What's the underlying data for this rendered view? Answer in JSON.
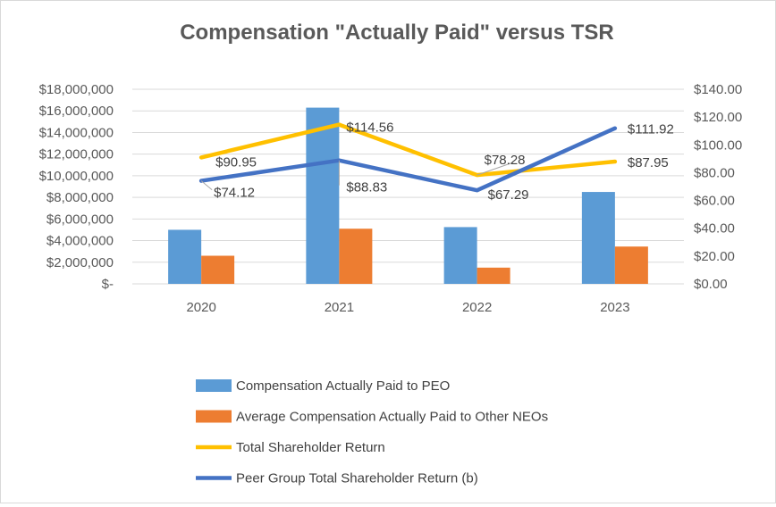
{
  "chart_data": {
    "type": "bar",
    "title": "Compensation \"Actually Paid\" versus TSR",
    "categories": [
      "2020",
      "2021",
      "2022",
      "2023"
    ],
    "y_left": {
      "min": 0,
      "max": 18000000,
      "step": 2000000,
      "tick_labels": [
        "$-",
        "$2,000,000",
        "$4,000,000",
        "$6,000,000",
        "$8,000,000",
        "$10,000,000",
        "$12,000,000",
        "$14,000,000",
        "$16,000,000",
        "$18,000,000"
      ]
    },
    "y_right": {
      "min": 0,
      "max": 140,
      "step": 20,
      "tick_labels": [
        "$0.00",
        "$20.00",
        "$40.00",
        "$60.00",
        "$80.00",
        "$100.00",
        "$120.00",
        "$140.00"
      ]
    },
    "bar_series": [
      {
        "name": "Compensation Actually Paid to PEO",
        "color": "#5B9BD5",
        "values": [
          5000000,
          16300000,
          5250000,
          8500000
        ]
      },
      {
        "name": "Average Compensation Actually Paid to Other NEOs",
        "color": "#ED7D31",
        "values": [
          2600000,
          5100000,
          1500000,
          3450000
        ]
      }
    ],
    "line_series": [
      {
        "name": "Total Shareholder Return",
        "color": "#FFC000",
        "values": [
          90.95,
          114.56,
          78.28,
          87.95
        ],
        "labels": [
          "$90.95",
          "$114.56",
          "$78.28",
          "$87.95"
        ]
      },
      {
        "name": "Peer Group Total Shareholder Return (b)",
        "color": "#4472C4",
        "values": [
          74.12,
          88.83,
          67.29,
          111.92
        ],
        "labels": [
          "$74.12",
          "$88.83",
          "$67.29",
          "$111.92"
        ]
      }
    ],
    "legend_position": "bottom"
  }
}
